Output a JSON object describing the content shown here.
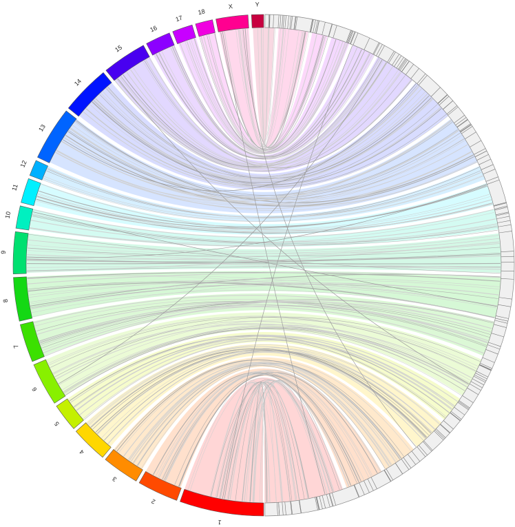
{
  "diagram": {
    "type": "chord",
    "left_segments": [
      {
        "label": "1",
        "color": "#ff0000",
        "band": "#ffd6d6"
      },
      {
        "label": "2",
        "color": "#ff4a00",
        "band": "#ffe0cc"
      },
      {
        "label": "3",
        "color": "#ff8c00",
        "band": "#ffe9cc"
      },
      {
        "label": "4",
        "color": "#ffd700",
        "band": "#fff6cc"
      },
      {
        "label": "5",
        "color": "#c4f000",
        "band": "#f6fccc"
      },
      {
        "label": "6",
        "color": "#88f000",
        "band": "#ebfbd6"
      },
      {
        "label": "7",
        "color": "#3ce000",
        "band": "#dcf8d6"
      },
      {
        "label": "8",
        "color": "#14d814",
        "band": "#d6f8d6"
      },
      {
        "label": "9",
        "color": "#00e070",
        "band": "#d4f8e6"
      },
      {
        "label": "10",
        "color": "#00f0c0",
        "band": "#d4fbf2"
      },
      {
        "label": "11",
        "color": "#00f0ff",
        "band": "#d6fcff"
      },
      {
        "label": "12",
        "color": "#00b0ff",
        "band": "#d6efff"
      },
      {
        "label": "13",
        "color": "#0064ff",
        "band": "#d6e4ff"
      },
      {
        "label": "14",
        "color": "#0014ff",
        "band": "#d8dcff"
      },
      {
        "label": "15",
        "color": "#4800f0",
        "band": "#e2d8ff"
      },
      {
        "label": "16",
        "color": "#8c00ff",
        "band": "#ebd8ff"
      },
      {
        "label": "17",
        "color": "#c800ff",
        "band": "#f4d8ff"
      },
      {
        "label": "18",
        "color": "#f000e0",
        "band": "#fcd8fa"
      },
      {
        "label": "X",
        "color": "#ff0090",
        "band": "#ffd8ec"
      },
      {
        "label": "Y",
        "color": "#c80040",
        "band": "#f8d8e2"
      }
    ],
    "right_side": {
      "label": "",
      "fill": "#f0f0f0",
      "tick_color": "#777777"
    }
  }
}
